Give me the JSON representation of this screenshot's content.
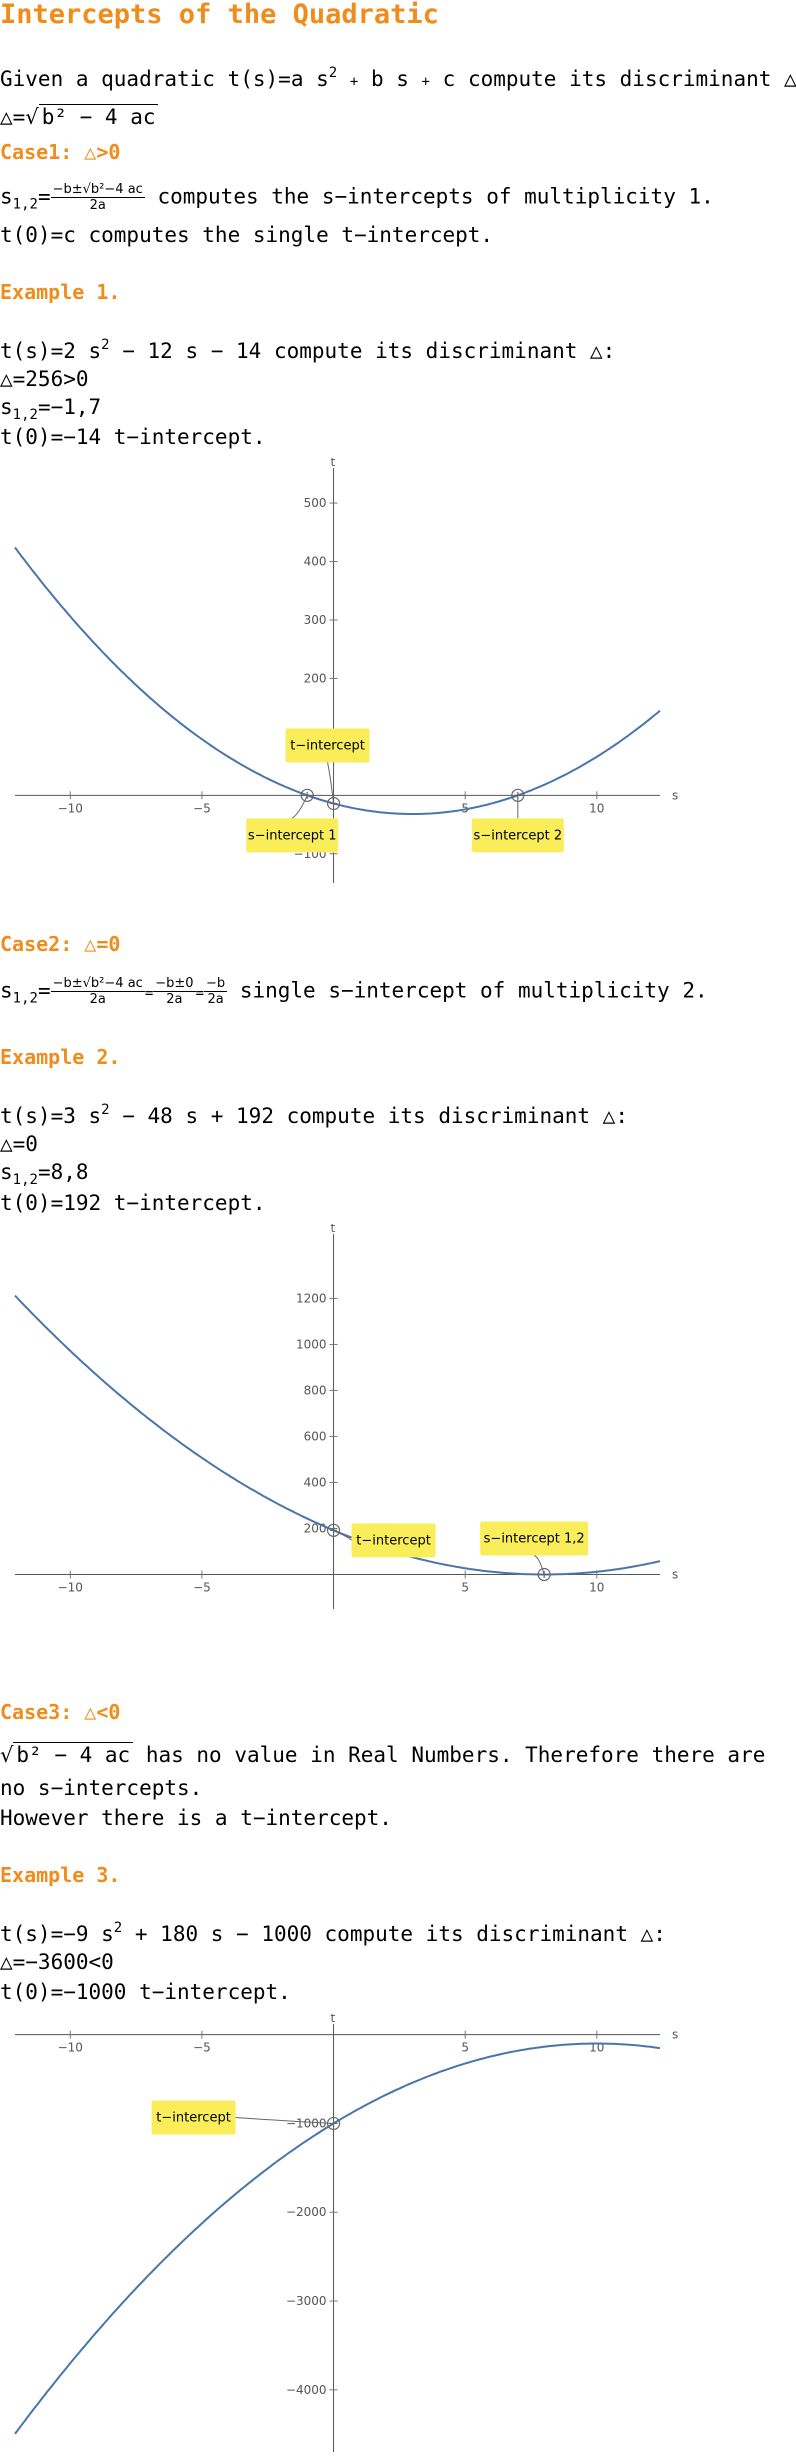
{
  "title": "Intercepts of the Quadratic",
  "intro": {
    "given_pre": "Given a quadratic",
    "t_of_s": "t(s)=",
    "quad_a": "a s",
    "exp2": "2",
    "plus": "+",
    "quad_b": "b s",
    "quad_c": "c",
    "given_post": "compute its discriminant △:",
    "disc_lhs": "△=",
    "disc_radicand": "b² − 4 ac"
  },
  "case1": {
    "heading": "Case1: △>0",
    "s12": "s",
    "s12_sub": "1,2",
    "eq": "=",
    "frac_num": "−b±√b²−4 ac",
    "frac_den": "2a",
    "text1": "computes the s−intercepts of multiplicity 1.",
    "text2": "t(0)=c computes the single t−intercept."
  },
  "example1": {
    "heading": "Example 1.",
    "line1_a": "t(s)=2 s",
    "exp2": "2",
    "line1_b": "− 12 s − 14 compute its discriminant △:",
    "line2": "△=256>0",
    "line3_a": "s",
    "line3_sub": "1,2",
    "line3_b": "=−1,7",
    "line4": "t(0)=−14  t−intercept."
  },
  "case2": {
    "heading": "Case2: △=0",
    "s12": "s",
    "s12_sub": "1,2",
    "eq": "=",
    "frac1_num": "−b±√b²−4 ac",
    "frac1_den": "2a",
    "frac2_num": "−b±0",
    "frac2_den": "2a",
    "frac3_num": "−b",
    "frac3_den": "2a",
    "text": "single s−intercept of multiplicity 2."
  },
  "example2": {
    "heading": "Example 2.",
    "line1_a": "t(s)=3 s",
    "exp2": "2",
    "line1_b": "− 48 s + 192 compute its discriminant △:",
    "line2": "△=0",
    "line3_a": "s",
    "line3_sub": "1,2",
    "line3_b": "=8,8",
    "line4": "t(0)=192  t−intercept."
  },
  "case3": {
    "heading": "Case3: △<0",
    "radicand": "b² − 4 ac",
    "text1": "has no value in Real Numbers. Therefore there are",
    "text2": "no s−intercepts.",
    "text3": "However there is a t−intercept."
  },
  "example3": {
    "heading": "Example 3.",
    "line1_a": "t(s)=−9 s",
    "exp2": "2",
    "line1_b": "+ 180 s − 1000 compute its discriminant △:",
    "line2": "△=−3600<0",
    "line3": "t(0)=−1000 t−intercept."
  },
  "chart_data": [
    {
      "type": "line",
      "function": "t(s) = 2 s^2 - 12 s - 14",
      "coef": [
        2,
        -12,
        -14
      ],
      "xlabel": "s",
      "ylabel": "t",
      "xlim": [
        -12.1,
        12.4
      ],
      "ylim": [
        -150,
        560
      ],
      "xticks": [
        -10,
        -5,
        5,
        10
      ],
      "yticks": [
        -100,
        100,
        200,
        300,
        400,
        500
      ],
      "grid": false,
      "points": [
        {
          "label": "s−intercept 1",
          "x": -1,
          "y": 0
        },
        {
          "label": "s−intercept 2",
          "x": 7,
          "y": 0
        },
        {
          "label": "t−intercept",
          "x": 0,
          "y": -14
        }
      ]
    },
    {
      "type": "line",
      "function": "t(s) = 3 s^2 - 48 s + 192",
      "coef": [
        3,
        -48,
        192
      ],
      "xlabel": "s",
      "ylabel": "t",
      "xlim": [
        -12.1,
        12.4
      ],
      "ylim": [
        -150,
        1480
      ],
      "xticks": [
        -10,
        -5,
        5,
        10
      ],
      "yticks": [
        200,
        400,
        600,
        800,
        1000,
        1200
      ],
      "grid": false,
      "points": [
        {
          "label": "t−intercept",
          "x": 0,
          "y": 192
        },
        {
          "label": "s−intercept 1,2",
          "x": 8,
          "y": 0
        }
      ]
    },
    {
      "type": "line",
      "function": "t(s) = -9 s^2 + 180 s - 1000",
      "coef": [
        -9,
        180,
        -1000
      ],
      "xlabel": "s",
      "ylabel": "t",
      "xlim": [
        -12.1,
        12.4
      ],
      "ylim": [
        -4700,
        120
      ],
      "xticks": [
        -10,
        -5,
        5,
        10
      ],
      "yticks": [
        -1000,
        -2000,
        -3000,
        -4000
      ],
      "grid": false,
      "points": [
        {
          "label": "t−intercept",
          "x": 0,
          "y": -1000
        }
      ]
    }
  ]
}
